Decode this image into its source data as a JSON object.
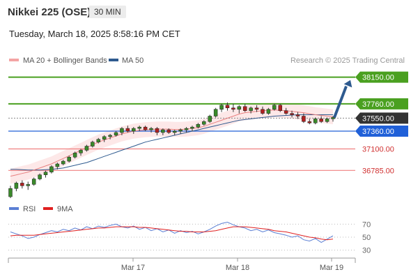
{
  "header": {
    "title": "Nikkei 225 (OSE)",
    "timeframe": "30 MIN",
    "datetime": "Tuesday, March 18, 2025 8:58:16 PM CET"
  },
  "legend": {
    "ma20_label": "MA 20 + Bollinger Bands",
    "ma50_label": "MA 50",
    "credit": "Research © 2025 Trading Central",
    "ma20_color": "#f4a4a4",
    "ma50_color": "#2e5a8f"
  },
  "rsi_legend": {
    "rsi_label": "RSI",
    "ma_label": "9MA",
    "rsi_color": "#5b7fd4",
    "ma_color": "#e02020"
  },
  "colors": {
    "resistance": "#4aa020",
    "pivot": "#2060d8",
    "support": "#f08080",
    "current": "#333333",
    "candle_up": "#3a8a2a",
    "candle_down": "#b02020"
  },
  "chart_data": [
    {
      "type": "candlestick",
      "x_ticks": [
        "Mar 17",
        "Mar 18",
        "Mar 19"
      ],
      "levels": [
        {
          "value": 38150.0,
          "label": "38150.00",
          "kind": "resistance"
        },
        {
          "value": 37760.0,
          "label": "37760.00",
          "kind": "resistance"
        },
        {
          "value": 37550.0,
          "label": "37550.00",
          "kind": "current"
        },
        {
          "value": 37360.0,
          "label": "37360.00",
          "kind": "pivot"
        },
        {
          "value": 37100.0,
          "label": "37100.00",
          "kind": "support"
        },
        {
          "value": 36785.0,
          "label": "36785.00",
          "kind": "support"
        }
      ],
      "ohlc": [
        [
          36400,
          36560,
          36380,
          36520
        ],
        [
          36520,
          36620,
          36480,
          36600
        ],
        [
          36600,
          36640,
          36520,
          36560
        ],
        [
          36560,
          36620,
          36500,
          36580
        ],
        [
          36580,
          36680,
          36560,
          36660
        ],
        [
          36660,
          36740,
          36640,
          36720
        ],
        [
          36720,
          36780,
          36680,
          36760
        ],
        [
          36760,
          36860,
          36740,
          36840
        ],
        [
          36840,
          36900,
          36800,
          36880
        ],
        [
          36880,
          36940,
          36860,
          36920
        ],
        [
          36920,
          37000,
          36900,
          36980
        ],
        [
          36980,
          37060,
          36960,
          37040
        ],
        [
          37040,
          37100,
          37000,
          37080
        ],
        [
          37080,
          37160,
          37060,
          37140
        ],
        [
          37140,
          37220,
          37120,
          37200
        ],
        [
          37200,
          37260,
          37180,
          37240
        ],
        [
          37240,
          37300,
          37200,
          37280
        ],
        [
          37280,
          37320,
          37240,
          37300
        ],
        [
          37300,
          37360,
          37280,
          37340
        ],
        [
          37340,
          37420,
          37300,
          37400
        ],
        [
          37400,
          37440,
          37340,
          37360
        ],
        [
          37360,
          37420,
          37320,
          37400
        ],
        [
          37400,
          37440,
          37360,
          37420
        ],
        [
          37420,
          37440,
          37360,
          37380
        ],
        [
          37380,
          37420,
          37340,
          37400
        ],
        [
          37400,
          37420,
          37300,
          37340
        ],
        [
          37340,
          37400,
          37300,
          37380
        ],
        [
          37380,
          37400,
          37320,
          37340
        ],
        [
          37340,
          37380,
          37300,
          37360
        ],
        [
          37360,
          37400,
          37320,
          37380
        ],
        [
          37380,
          37420,
          37340,
          37400
        ],
        [
          37400,
          37440,
          37360,
          37420
        ],
        [
          37420,
          37480,
          37400,
          37460
        ],
        [
          37460,
          37520,
          37440,
          37500
        ],
        [
          37500,
          37600,
          37480,
          37580
        ],
        [
          37580,
          37700,
          37560,
          37680
        ],
        [
          37680,
          37760,
          37640,
          37740
        ],
        [
          37740,
          37780,
          37660,
          37700
        ],
        [
          37700,
          37760,
          37640,
          37680
        ],
        [
          37680,
          37740,
          37620,
          37720
        ],
        [
          37720,
          37760,
          37640,
          37660
        ],
        [
          37660,
          37720,
          37620,
          37700
        ],
        [
          37700,
          37740,
          37640,
          37680
        ],
        [
          37680,
          37720,
          37600,
          37620
        ],
        [
          37620,
          37700,
          37600,
          37680
        ],
        [
          37680,
          37760,
          37660,
          37740
        ],
        [
          37740,
          37760,
          37640,
          37660
        ],
        [
          37660,
          37700,
          37600,
          37620
        ],
        [
          37620,
          37660,
          37560,
          37600
        ],
        [
          37600,
          37640,
          37540,
          37580
        ],
        [
          37580,
          37620,
          37480,
          37500
        ],
        [
          37500,
          37540,
          37460,
          37480
        ],
        [
          37480,
          37560,
          37460,
          37540
        ],
        [
          37540,
          37580,
          37480,
          37500
        ],
        [
          37500,
          37560,
          37480,
          37540
        ],
        [
          37540,
          37580,
          37500,
          37560
        ]
      ],
      "ma20": [
        36700,
        36720,
        36740,
        36760,
        36790,
        36820,
        36850,
        36880,
        36920,
        36960,
        37000,
        37040,
        37080,
        37120,
        37160,
        37200,
        37230,
        37260,
        37290,
        37320,
        37340,
        37360,
        37370,
        37380,
        37385,
        37390,
        37390,
        37390,
        37385,
        37385,
        37390,
        37400,
        37410,
        37430,
        37460,
        37490,
        37520,
        37550,
        37580,
        37610,
        37630,
        37640,
        37650,
        37660,
        37665,
        37670,
        37665,
        37660,
        37650,
        37640,
        37630,
        37615,
        37600,
        37590,
        37580,
        37570
      ],
      "ma50": [
        36800,
        36800,
        36795,
        36790,
        36790,
        36790,
        36795,
        36800,
        36810,
        36820,
        36840,
        36860,
        36880,
        36900,
        36930,
        36960,
        36990,
        37020,
        37050,
        37080,
        37110,
        37140,
        37170,
        37200,
        37220,
        37240,
        37260,
        37280,
        37300,
        37320,
        37340,
        37360,
        37380,
        37400,
        37420,
        37440,
        37460,
        37480,
        37500,
        37520,
        37530,
        37540,
        37550,
        37560,
        37570,
        37580,
        37585,
        37590,
        37595,
        37600,
        37600,
        37600,
        37600,
        37600,
        37600,
        37600
      ],
      "ylim": [
        36400,
        38300
      ]
    },
    {
      "type": "line",
      "name": "RSI",
      "yticks": [
        70,
        50,
        30
      ],
      "ylim": [
        20,
        80
      ],
      "rsi": [
        58,
        55,
        52,
        48,
        50,
        54,
        57,
        60,
        58,
        62,
        60,
        64,
        61,
        66,
        63,
        67,
        65,
        68,
        70,
        66,
        64,
        67,
        62,
        65,
        60,
        63,
        58,
        61,
        56,
        60,
        57,
        59,
        55,
        58,
        62,
        67,
        71,
        73,
        69,
        66,
        64,
        60,
        62,
        58,
        61,
        57,
        55,
        53,
        50,
        52,
        46,
        44,
        48,
        42,
        47,
        52
      ],
      "rsi_ma": [
        52,
        53,
        53,
        53,
        53,
        54,
        55,
        56,
        57,
        58,
        59,
        60,
        61,
        62,
        63,
        64,
        64,
        65,
        66,
        66,
        66,
        66,
        65,
        65,
        64,
        63,
        62,
        61,
        60,
        59,
        59,
        58,
        58,
        58,
        59,
        60,
        62,
        64,
        66,
        66,
        66,
        65,
        64,
        63,
        62,
        60,
        59,
        58,
        56,
        54,
        52,
        50,
        49,
        47,
        46,
        47
      ]
    }
  ]
}
